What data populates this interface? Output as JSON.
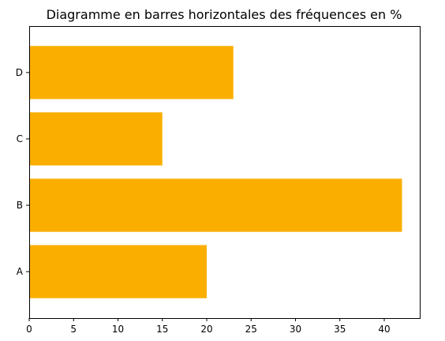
{
  "chart_data": {
    "type": "bar",
    "orientation": "horizontal",
    "title": "Diagramme en barres horizontales des fréquences en %",
    "xlabel": "",
    "ylabel": "",
    "categories": [
      "A",
      "B",
      "C",
      "D"
    ],
    "values": [
      20,
      42,
      15,
      23
    ],
    "xlim": [
      0,
      44
    ],
    "xticks": [
      0,
      5,
      10,
      15,
      20,
      25,
      30,
      35,
      40
    ],
    "grid": false,
    "legend": "none",
    "bar_color": "#FAAF00"
  }
}
